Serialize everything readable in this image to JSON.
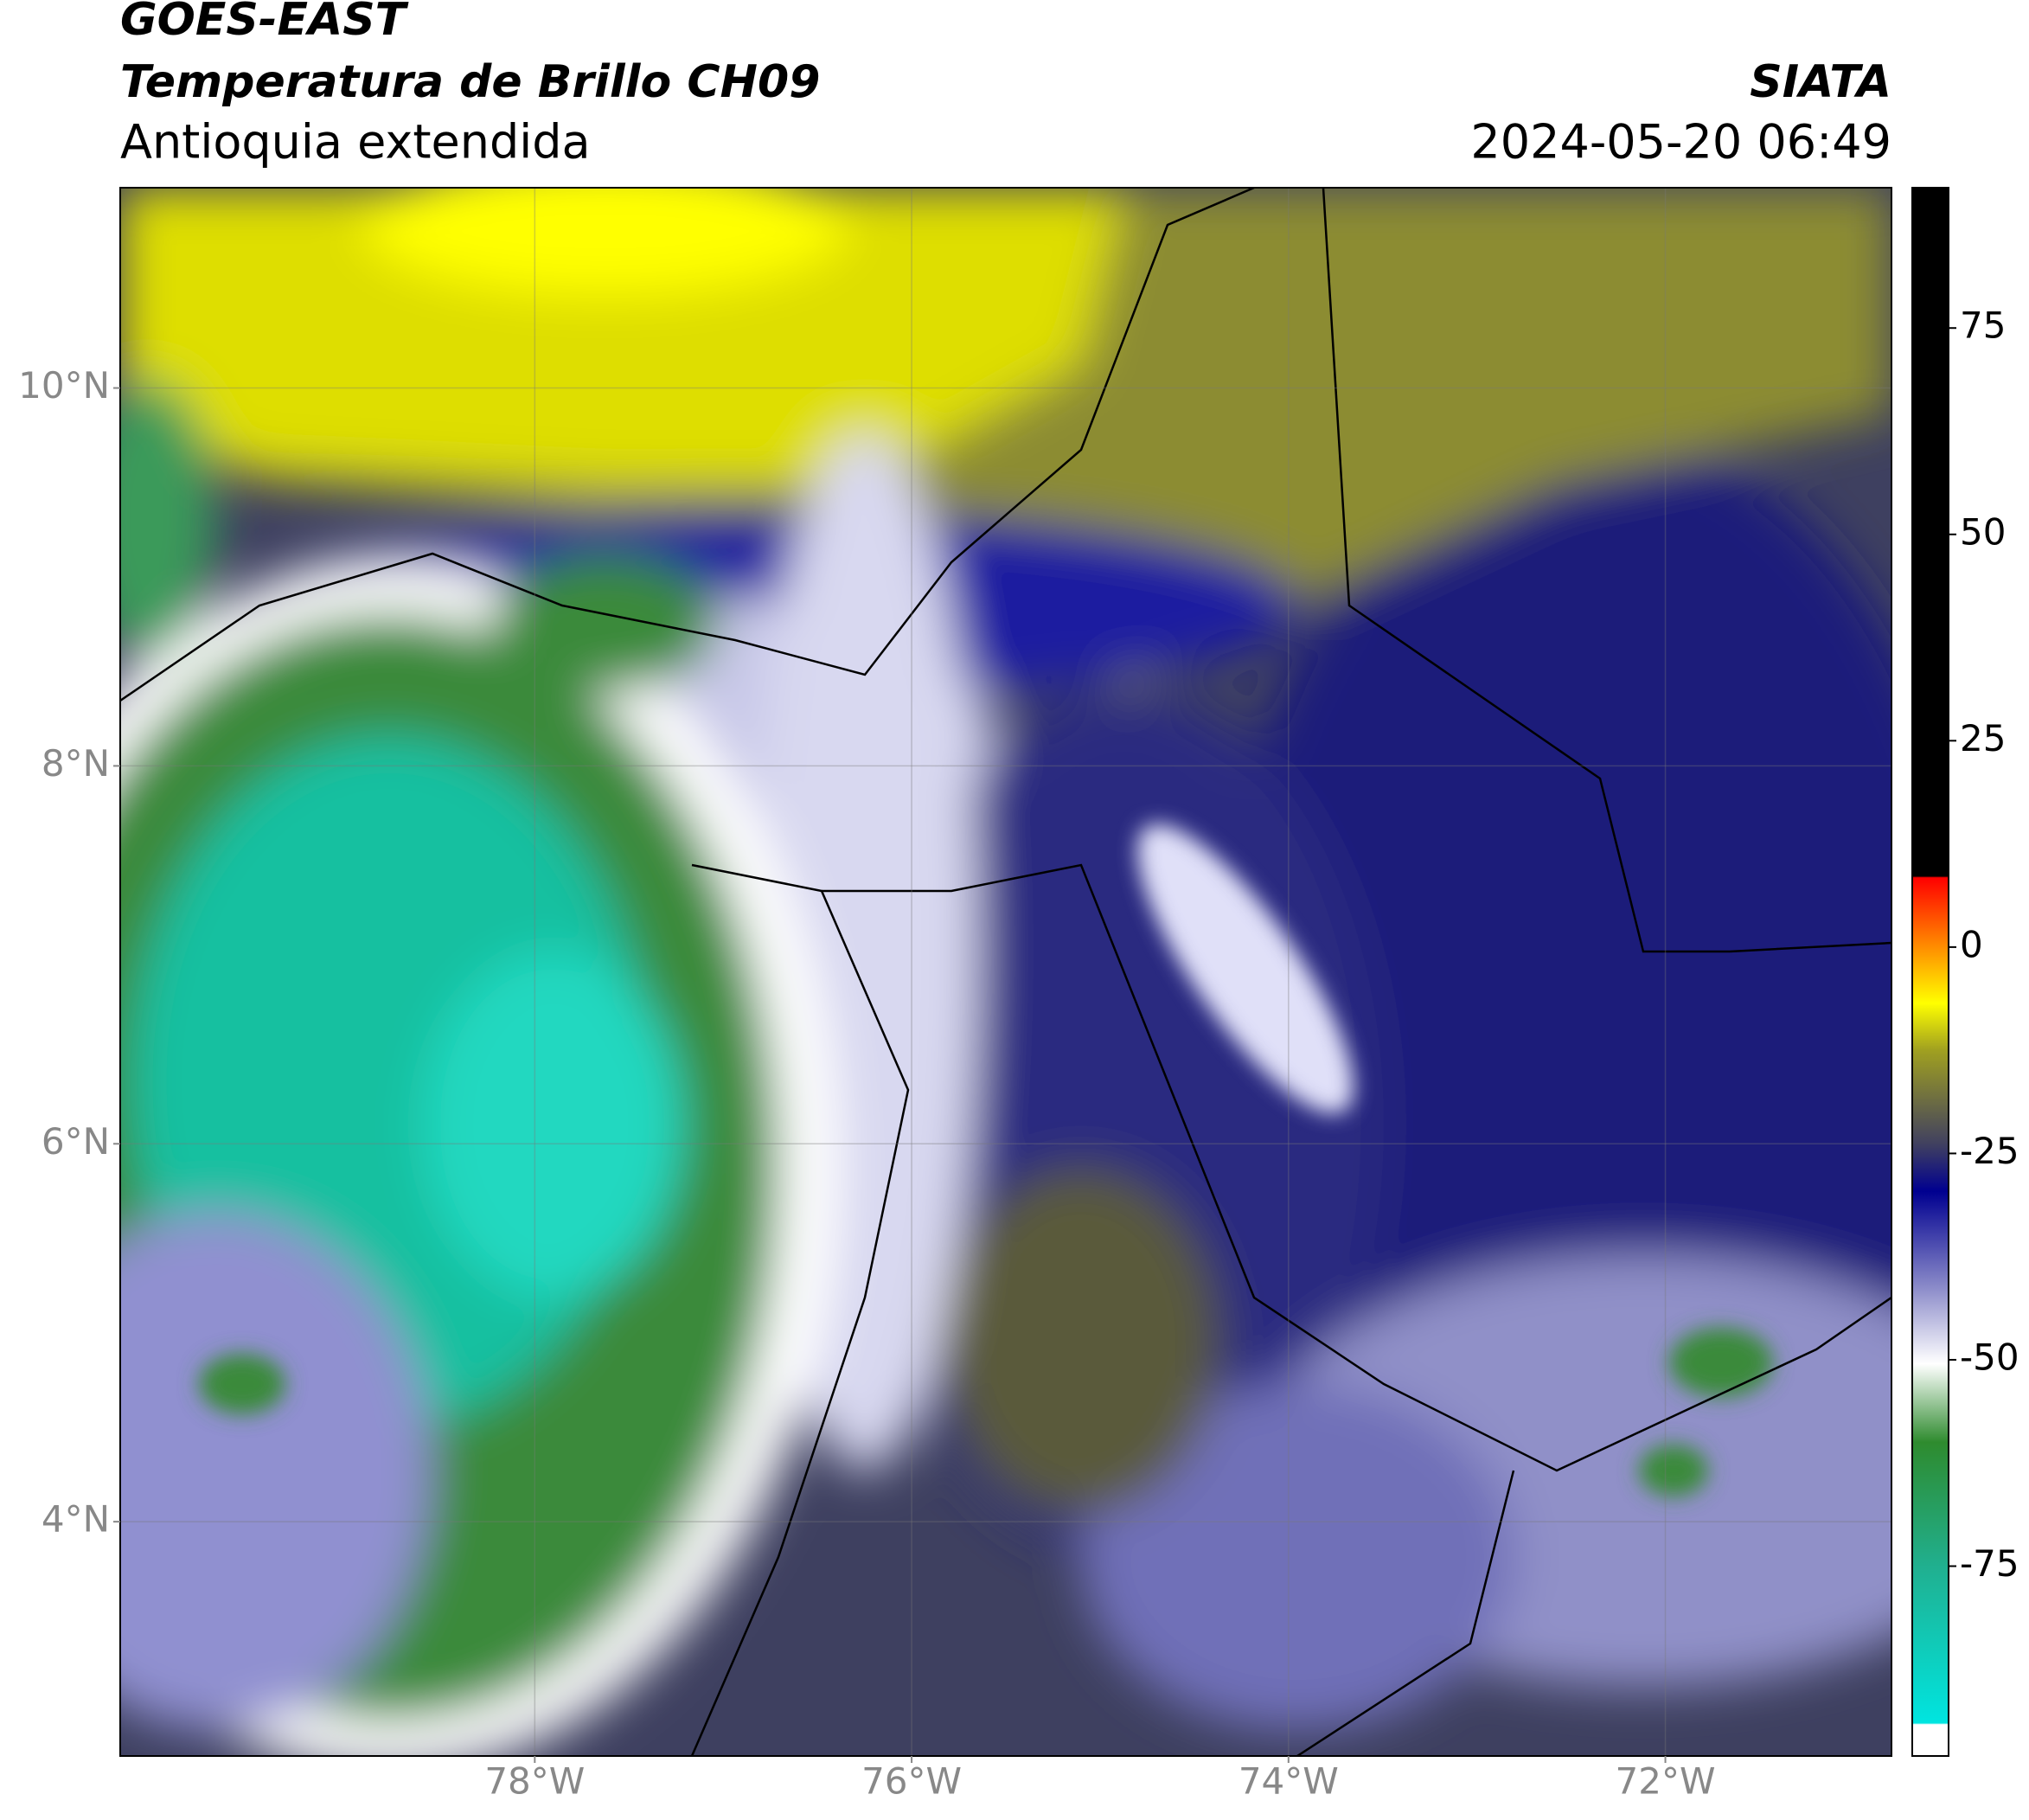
{
  "header": {
    "line1": "GOES-EAST",
    "line2": "Temperatura de Brillo CH09",
    "line3": "Antioquia extendida",
    "source": "SIATA",
    "datetime": "2024-05-20 06:49"
  },
  "map": {
    "xlim": [
      -80.2,
      -70.8
    ],
    "ylim": [
      2.76,
      11.06
    ],
    "xticks": [
      {
        "value": -78,
        "label": "78°W"
      },
      {
        "value": -76,
        "label": "76°W"
      },
      {
        "value": -74,
        "label": "74°W"
      },
      {
        "value": -72,
        "label": "72°W"
      }
    ],
    "yticks": [
      {
        "value": 4,
        "label": "4°N"
      },
      {
        "value": 6,
        "label": "6°N"
      },
      {
        "value": 8,
        "label": "8°N"
      },
      {
        "value": 10,
        "label": "10°N"
      }
    ],
    "grid": true
  },
  "colorbar": {
    "lim": [
      -98,
      92
    ],
    "ticks": [
      -75,
      -50,
      -25,
      0,
      25,
      50,
      75
    ]
  }
}
